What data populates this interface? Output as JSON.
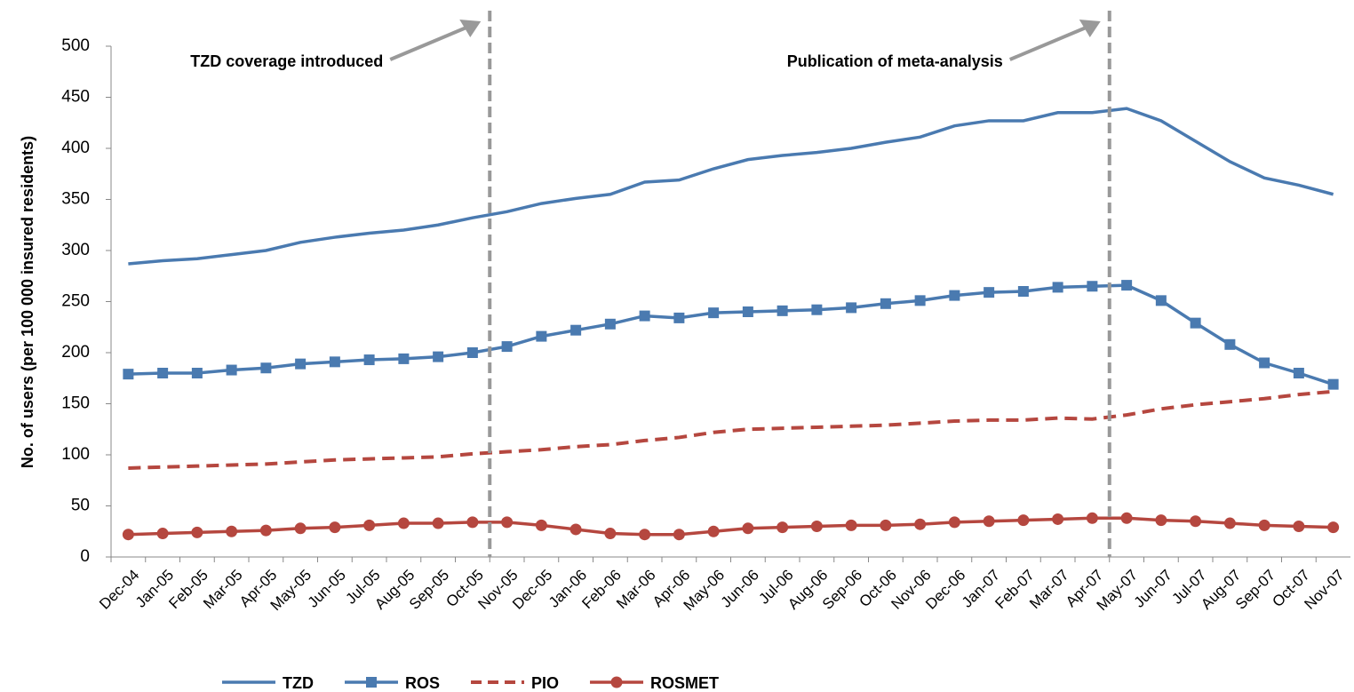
{
  "chart_data": {
    "type": "line",
    "y_label": "No. of users (per 100 000 insured residents)",
    "categories": [
      "Dec-04",
      "Jan-05",
      "Feb-05",
      "Mar-05",
      "Apr-05",
      "May-05",
      "Jun-05",
      "Jul-05",
      "Aug-05",
      "Sep-05",
      "Oct-05",
      "Nov-05",
      "Dec-05",
      "Jan-06",
      "Feb-06",
      "Mar-06",
      "Apr-06",
      "May-06",
      "Jun-06",
      "Jul-06",
      "Aug-06",
      "Sep-06",
      "Oct-06",
      "Nov-06",
      "Dec-06",
      "Jan-07",
      "Feb-07",
      "Mar-07",
      "Apr-07",
      "May-07",
      "Jun-07",
      "Jul-07",
      "Aug-07",
      "Sep-07",
      "Oct-07",
      "Nov-07"
    ],
    "series": [
      {
        "name": "TZD",
        "color": "#4a7ab0",
        "marker": "none",
        "dash": false,
        "values": [
          287,
          290,
          292,
          296,
          300,
          308,
          313,
          317,
          320,
          325,
          332,
          338,
          346,
          351,
          355,
          367,
          369,
          380,
          389,
          393,
          396,
          400,
          406,
          411,
          422,
          427,
          427,
          435,
          435,
          439,
          427,
          407,
          387,
          371,
          364,
          355
        ]
      },
      {
        "name": "ROS",
        "color": "#4a7ab0",
        "marker": "square",
        "dash": false,
        "values": [
          179,
          180,
          180,
          183,
          185,
          189,
          191,
          193,
          194,
          196,
          200,
          206,
          216,
          222,
          228,
          236,
          234,
          239,
          240,
          241,
          242,
          244,
          248,
          251,
          256,
          259,
          260,
          264,
          265,
          266,
          251,
          229,
          208,
          190,
          180,
          169
        ]
      },
      {
        "name": "PIO",
        "color": "#b5473f",
        "marker": "none",
        "dash": true,
        "values": [
          87,
          88,
          89,
          90,
          91,
          93,
          95,
          96,
          97,
          98,
          101,
          103,
          105,
          108,
          110,
          114,
          117,
          122,
          125,
          126,
          127,
          128,
          129,
          131,
          133,
          134,
          134,
          136,
          135,
          139,
          145,
          149,
          152,
          155,
          159,
          162
        ]
      },
      {
        "name": "ROSMET",
        "color": "#b5473f",
        "marker": "circle",
        "dash": false,
        "values": [
          22,
          23,
          24,
          25,
          26,
          28,
          29,
          31,
          33,
          33,
          34,
          34,
          31,
          27,
          23,
          22,
          22,
          25,
          28,
          29,
          30,
          31,
          31,
          32,
          34,
          35,
          36,
          37,
          38,
          38,
          36,
          35,
          33,
          31,
          30,
          29
        ]
      }
    ],
    "annotations": [
      {
        "text": "TZD coverage introduced",
        "x": "Nov-05"
      },
      {
        "text": "Publication of meta-analysis",
        "x": "May-07"
      }
    ],
    "ylim": [
      0,
      500
    ],
    "yticks": [
      0,
      50,
      100,
      150,
      200,
      250,
      300,
      350,
      400,
      450,
      500
    ],
    "grid": false,
    "legend": "bottom"
  }
}
